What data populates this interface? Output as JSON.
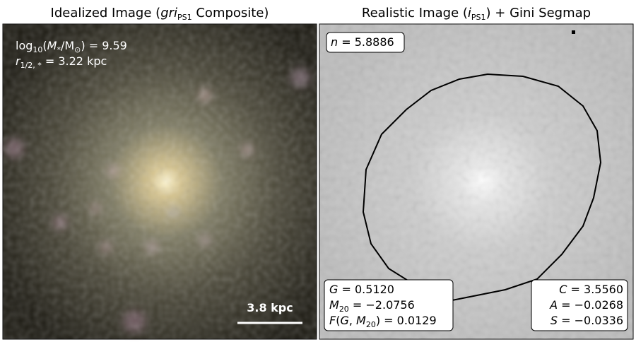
{
  "panels": [
    {
      "title": [
        "Idealized Image (",
        "gri",
        "PS1",
        " Composite)"
      ],
      "annotations": [
        [
          "log",
          "10",
          "(",
          "M",
          "*",
          "/M",
          "⊙",
          ") = 9.59"
        ],
        [
          "r",
          "1/2, *",
          " = 3.22 kpc"
        ]
      ],
      "scale_bar": "3.8 kpc"
    },
    {
      "title": [
        "Realistic Image (",
        "i",
        "PS1",
        ") + Gini Segmap"
      ],
      "sersic": [
        "n",
        " = 5.8886"
      ],
      "gini_box": [
        [
          "G",
          " = 0.5120"
        ],
        [
          "M",
          "20",
          " = −2.0756"
        ],
        [
          "F",
          "(",
          "G",
          ", ",
          "M",
          "20",
          ") = 0.0129"
        ]
      ],
      "cas_box": [
        [
          "C",
          " = 3.5560"
        ],
        [
          "A",
          " = −0.0268"
        ],
        [
          "S",
          " = −0.0336"
        ]
      ]
    }
  ]
}
